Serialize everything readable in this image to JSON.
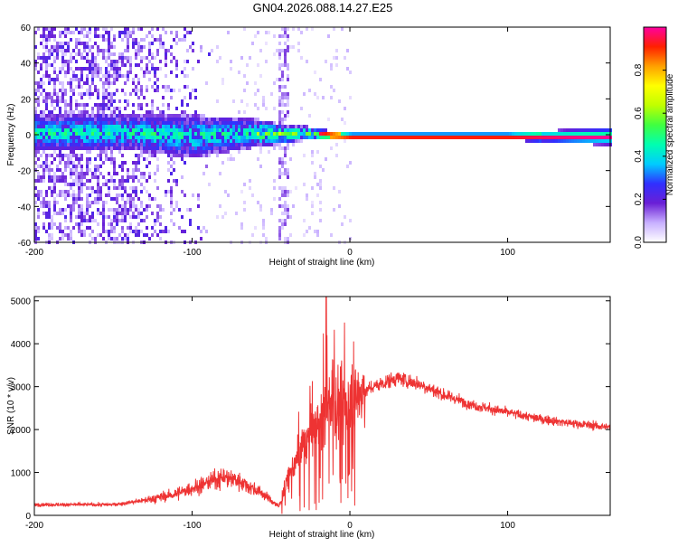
{
  "title": "GN04.2026.088.14.27.E25",
  "chart_data": [
    {
      "type": "heatmap",
      "name": "spectrogram",
      "xlabel": "Height of straight line (km)",
      "ylabel": "Frequency (Hz)",
      "xlim": [
        -200,
        165
      ],
      "ylim": [
        -60,
        60
      ],
      "xticks": [
        -200,
        -100,
        0,
        100
      ],
      "yticks": [
        -60,
        -40,
        -20,
        0,
        20,
        40,
        60
      ],
      "colorbar": {
        "label": "Normalized spectral amplitude",
        "range": [
          0,
          1
        ],
        "ticks": [
          0.0,
          0.2,
          0.4,
          0.6,
          0.8
        ],
        "stops": [
          "#ffffff",
          "#c8b0ff",
          "#6a1fd6",
          "#3030ff",
          "#00ccff",
          "#00ffb0",
          "#40ff40",
          "#c0ff00",
          "#ffff00",
          "#ffa000",
          "#ff2000",
          "#ff00a0"
        ]
      },
      "description_series": {
        "center_frequency_hz": [
          [
            -140,
            2
          ],
          [
            -100,
            0
          ],
          [
            -60,
            2
          ],
          [
            -40,
            1
          ],
          [
            -30,
            2
          ],
          [
            -20,
            1
          ],
          [
            0,
            0
          ],
          [
            100,
            0
          ],
          [
            165,
            0
          ]
        ],
        "band_halfwidth_hz": [
          [
            -140,
            10
          ],
          [
            -100,
            12
          ],
          [
            -60,
            8
          ],
          [
            -40,
            5
          ],
          [
            -20,
            3
          ],
          [
            0,
            2
          ],
          [
            100,
            2
          ],
          [
            140,
            4
          ],
          [
            165,
            5
          ]
        ],
        "noise_edge_km": -85,
        "spike_x_km": -43
      }
    },
    {
      "type": "line",
      "name": "snr",
      "xlabel": "Height of straight line (km)",
      "ylabel": "SNR (10 * v/v)",
      "xlim": [
        -200,
        165
      ],
      "ylim": [
        0,
        5100
      ],
      "xticks": [
        -200,
        -100,
        0,
        100
      ],
      "yticks": [
        0,
        1000,
        2000,
        3000,
        4000,
        5000
      ],
      "color": "#ee3333",
      "envelope": [
        [
          -200,
          250
        ],
        [
          -150,
          250
        ],
        [
          -130,
          350
        ],
        [
          -110,
          500
        ],
        [
          -95,
          700
        ],
        [
          -80,
          900
        ],
        [
          -70,
          800
        ],
        [
          -55,
          500
        ],
        [
          -45,
          200
        ],
        [
          -38,
          1000
        ],
        [
          -30,
          1600
        ],
        [
          -20,
          2200
        ],
        [
          -14,
          2500
        ],
        [
          -5,
          2600
        ],
        [
          5,
          2800
        ],
        [
          15,
          3000
        ],
        [
          30,
          3200
        ],
        [
          45,
          3050
        ],
        [
          60,
          2800
        ],
        [
          80,
          2550
        ],
        [
          100,
          2400
        ],
        [
          120,
          2250
        ],
        [
          140,
          2150
        ],
        [
          165,
          2050
        ]
      ],
      "peak": {
        "x": -15,
        "y": 5100
      }
    }
  ]
}
